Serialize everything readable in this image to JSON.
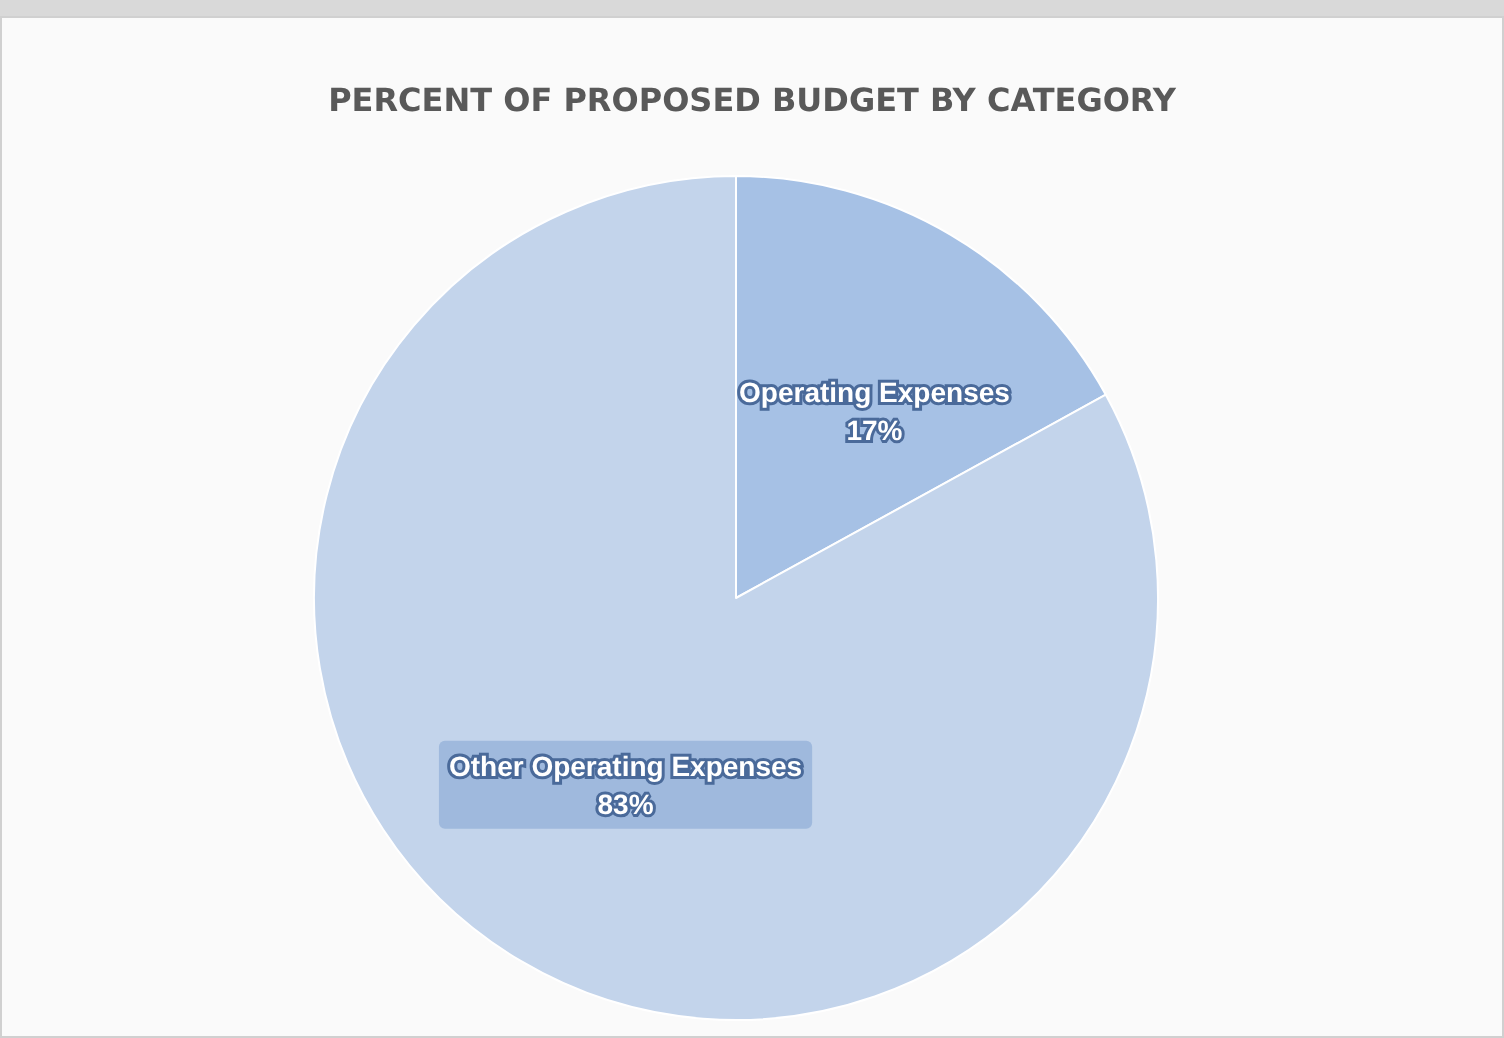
{
  "chart_data": {
    "type": "pie",
    "title": "PERCENT OF PROPOSED BUDGET BY CATEGORY",
    "categories": [
      "Operating Expenses",
      "Other Operating Expenses"
    ],
    "values": [
      17,
      83
    ],
    "colors": [
      "#a6c1e5",
      "#c3d4eb"
    ],
    "value_labels": [
      "17%",
      "83%"
    ],
    "legend": false
  }
}
